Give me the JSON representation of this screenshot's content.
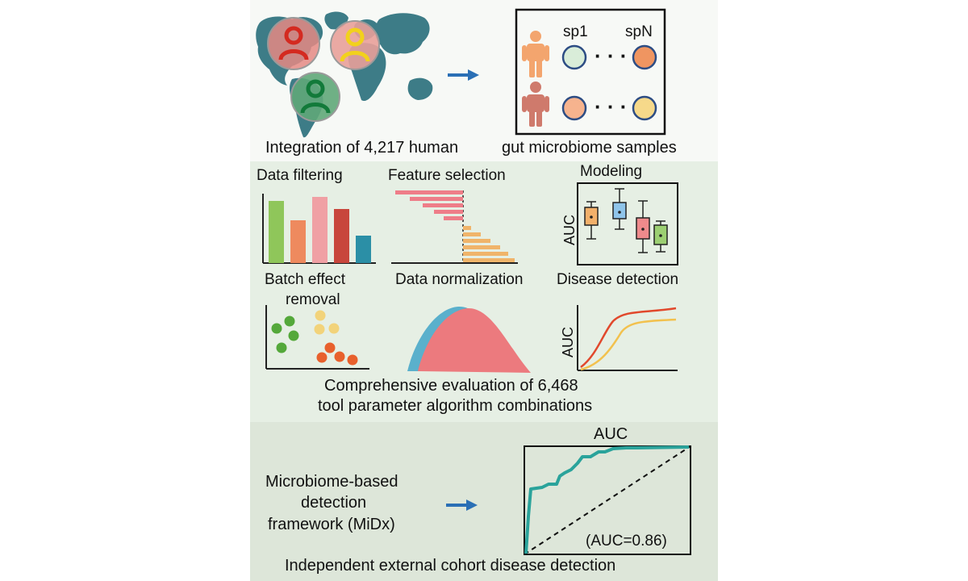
{
  "section1": {
    "caption_left": "Integration of 4,217 human",
    "caption_right": "gut microbiome samples",
    "species_first": "sp1",
    "species_last": "spN",
    "dots": "· · ·"
  },
  "section2": {
    "data_filtering": "Data filtering",
    "feature_selection": "Feature selection",
    "modeling": "Modeling",
    "auc_axis_1": "AUC",
    "batch_effect_line1": "Batch effect",
    "batch_effect_line2": "removal",
    "data_normalization": "Data normalization",
    "disease_detection": "Disease detection",
    "auc_axis_2": "AUC",
    "summary_line1": "Comprehensive evaluation of 6,468",
    "summary_line2": "tool parameter algorithm combinations"
  },
  "section3": {
    "framework_line1": "Microbiome-based",
    "framework_line2": "detection",
    "framework_line3": "framework (MiDx)",
    "roc_title": "AUC",
    "roc_auc_label": "(AUC=0.86)",
    "footer": "Independent external cohort disease detection"
  },
  "colors": {
    "panel_top": "#f7f9f6",
    "panel_middle": "#e6efe4",
    "panel_bottom": "#dde6d9",
    "arrow": "#2a6fb5",
    "roc_curve": "#2aa39b",
    "bar_green": "#8fc65a",
    "bar_orange": "#ee8a5e",
    "bar_pink": "#f0a0a4",
    "bar_red": "#c8463c",
    "bar_teal": "#2b8fa6"
  },
  "icons": [
    "world-map-icon",
    "person-icon",
    "arrow-right-icon"
  ]
}
